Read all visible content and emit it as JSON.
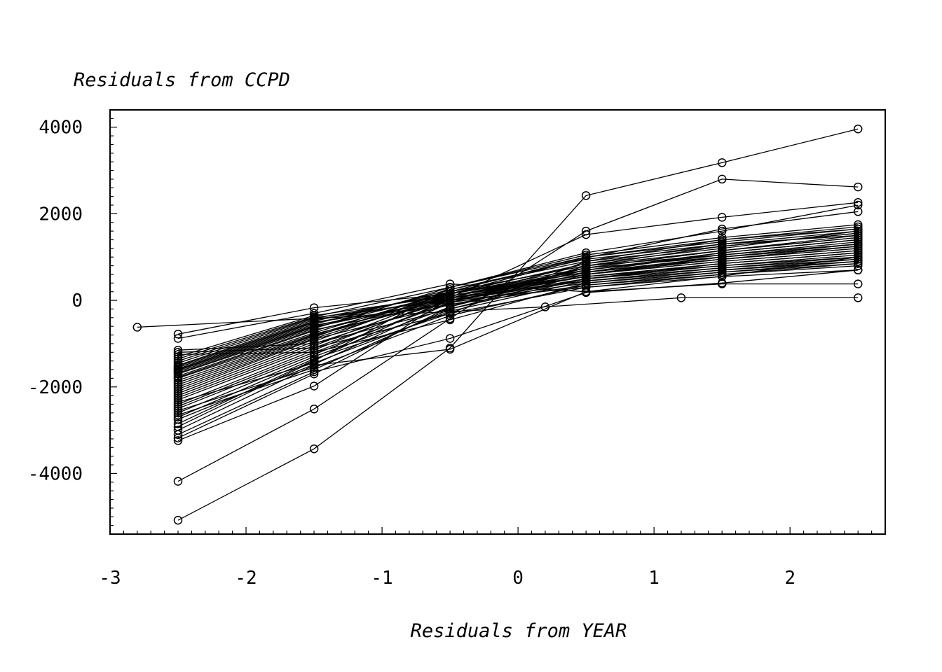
{
  "chart_data": {
    "type": "line",
    "title": "",
    "xlabel": "Residuals from YEAR",
    "ylabel": "Residuals from CCPD",
    "xlim": [
      -3,
      2.7
    ],
    "ylim": [
      -5400,
      4400
    ],
    "x_ticks": [
      -3,
      -2,
      -1,
      0,
      1,
      2
    ],
    "x_tick_labels": [
      "-3",
      "-2",
      "-1",
      "0",
      "1",
      "2"
    ],
    "y_ticks": [
      -4000,
      -2000,
      0,
      2000,
      4000
    ],
    "y_tick_labels": [
      "-4000",
      "-2000",
      "0",
      "2000",
      "4000"
    ],
    "grid": false,
    "marker": "open-circle",
    "line_color": "#000000",
    "series": [
      {
        "x": [
          -2.5,
          -1.5,
          -0.5,
          0.5,
          1.5,
          2.5
        ],
        "y": [
          -5080,
          -3430,
          -1100,
          2420,
          3180,
          3960
        ]
      },
      {
        "x": [
          -2.5,
          -1.5,
          -0.5,
          0.5,
          1.5,
          2.5
        ],
        "y": [
          -4180,
          -2510,
          -420,
          1600,
          2800,
          2620
        ]
      },
      {
        "x": [
          -2.5,
          -1.5,
          -0.5,
          0.5,
          1.5,
          2.5
        ],
        "y": [
          -3240,
          -1980,
          60,
          1520,
          1920,
          2260
        ]
      },
      {
        "x": [
          -2.8,
          0.2,
          1.2,
          2.5
        ],
        "y": [
          -620,
          -150,
          60,
          60
        ]
      },
      {
        "x": [
          -2.5,
          -1.5,
          -0.5,
          0.5,
          1.5,
          2.5
        ],
        "y": [
          -780,
          -170,
          150,
          980,
          1650,
          2050
        ]
      },
      {
        "x": [
          -2.5,
          -1.5,
          -0.5,
          0.5,
          1.5,
          2.5
        ],
        "y": [
          -880,
          -300,
          380,
          200,
          380,
          380
        ]
      },
      {
        "x": [
          -2.5,
          -1.5,
          -0.5,
          0.5,
          1.5,
          2.5
        ],
        "y": [
          -3100,
          -1650,
          -880,
          180,
          400,
          700
        ]
      },
      {
        "x": [
          -2.5,
          -1.5,
          -0.5,
          0.5,
          1.5,
          2.5
        ],
        "y": [
          -3000,
          -1500,
          -1130,
          200,
          560,
          1000
        ]
      },
      {
        "x": [
          -2.5,
          -1.5,
          -0.5,
          0.5,
          1.5,
          2.5
        ],
        "y": [
          -2920,
          -1400,
          300,
          1100,
          1600,
          2200
        ]
      },
      {
        "x": [
          -2.5,
          -1.5,
          -0.5,
          0.5,
          1.5,
          2.5
        ],
        "y": [
          -2700,
          -1350,
          -300,
          900,
          1400,
          1700
        ]
      },
      {
        "x": [
          -2.5,
          -1.5,
          -0.5,
          0.5,
          1.5,
          2.5
        ],
        "y": [
          -2600,
          -1300,
          -150,
          800,
          1250,
          1550
        ]
      },
      {
        "x": [
          -2.5,
          -1.5,
          -0.5,
          0.5,
          1.5,
          2.5
        ],
        "y": [
          -2500,
          -1250,
          0,
          750,
          1150,
          1450
        ]
      },
      {
        "x": [
          -2.5,
          -1.5,
          -0.5,
          0.5,
          1.5,
          2.5
        ],
        "y": [
          -2450,
          -1200,
          -50,
          700,
          1100,
          1400
        ]
      },
      {
        "x": [
          -2.5,
          -1.5,
          -0.5,
          0.5,
          1.5,
          2.5
        ],
        "y": [
          -2400,
          -1150,
          100,
          650,
          1000,
          1300
        ]
      },
      {
        "x": [
          -2.5,
          -1.5,
          -0.5,
          0.5,
          1.5,
          2.5
        ],
        "y": [
          -2300,
          -1100,
          50,
          600,
          950,
          1250
        ]
      },
      {
        "x": [
          -2.5,
          -1.5,
          -0.5,
          0.5,
          1.5,
          2.5
        ],
        "y": [
          -2250,
          -1050,
          150,
          850,
          1200,
          1600
        ]
      },
      {
        "x": [
          -2.5,
          -1.5,
          -0.5,
          0.5,
          1.5,
          2.5
        ],
        "y": [
          -2200,
          -1000,
          0,
          550,
          850,
          1100
        ]
      },
      {
        "x": [
          -2.5,
          -1.5,
          -0.5,
          0.5,
          1.5,
          2.5
        ],
        "y": [
          -2150,
          -950,
          200,
          1000,
          1350,
          1650
        ]
      },
      {
        "x": [
          -2.5,
          -1.5,
          -0.5,
          0.5,
          1.5,
          2.5
        ],
        "y": [
          -2100,
          -900,
          -100,
          500,
          800,
          1050
        ]
      },
      {
        "x": [
          -2.5,
          -1.5,
          -0.5,
          0.5,
          1.5,
          2.5
        ],
        "y": [
          -2050,
          -880,
          100,
          700,
          1050,
          1350
        ]
      },
      {
        "x": [
          -2.5,
          -1.5,
          -0.5,
          0.5,
          1.5,
          2.5
        ],
        "y": [
          -2000,
          -850,
          250,
          950,
          1300,
          1500
        ]
      },
      {
        "x": [
          -2.5,
          -1.5,
          -0.5,
          0.5,
          1.5,
          2.5
        ],
        "y": [
          -1950,
          -820,
          50,
          600,
          900,
          1150
        ]
      },
      {
        "x": [
          -2.5,
          -1.5,
          -0.5,
          0.5,
          1.5,
          2.5
        ],
        "y": [
          -1900,
          -800,
          150,
          750,
          1000,
          1250
        ]
      },
      {
        "x": [
          -2.5,
          -1.5,
          -0.5,
          0.5,
          1.5,
          2.5
        ],
        "y": [
          -1850,
          -780,
          0,
          450,
          700,
          900
        ]
      },
      {
        "x": [
          -2.5,
          -1.5,
          -0.5,
          0.5,
          1.5,
          2.5
        ],
        "y": [
          -1800,
          -750,
          200,
          800,
          1150,
          1450
        ]
      },
      {
        "x": [
          -2.5,
          -1.5,
          -0.5,
          0.5,
          1.5,
          2.5
        ],
        "y": [
          -1780,
          -700,
          100,
          650,
          950,
          1200
        ]
      },
      {
        "x": [
          -2.5,
          -1.5,
          -0.5,
          0.5,
          1.5,
          2.5
        ],
        "y": [
          -1750,
          -680,
          -50,
          400,
          650,
          850
        ]
      },
      {
        "x": [
          -2.5,
          -1.5,
          -0.5,
          0.5,
          1.5,
          2.5
        ],
        "y": [
          -1700,
          -650,
          300,
          1050,
          1450,
          1750
        ]
      },
      {
        "x": [
          -2.5,
          -1.5,
          -0.5,
          0.5,
          1.5,
          2.5
        ],
        "y": [
          -1680,
          -620,
          50,
          550,
          800,
          1000
        ]
      },
      {
        "x": [
          -2.5,
          -1.5,
          -0.5,
          0.5,
          1.5,
          2.5
        ],
        "y": [
          -1650,
          -600,
          150,
          700,
          1100,
          1400
        ]
      },
      {
        "x": [
          -2.5,
          -1.5,
          -0.5,
          0.5,
          1.5,
          2.5
        ],
        "y": [
          -1620,
          -580,
          0,
          500,
          750,
          950
        ]
      },
      {
        "x": [
          -2.5,
          -1.5,
          -0.5,
          0.5,
          1.5,
          2.5
        ],
        "y": [
          -1600,
          -550,
          250,
          900,
          1250,
          1550
        ]
      },
      {
        "x": [
          -2.5,
          -1.5,
          -0.5,
          0.5,
          1.5,
          2.5
        ],
        "y": [
          -1580,
          -520,
          100,
          600,
          900,
          1150
        ]
      },
      {
        "x": [
          -2.5,
          -1.5,
          -0.5,
          0.5,
          1.5,
          2.5
        ],
        "y": [
          -1550,
          -500,
          -100,
          350,
          600,
          800
        ]
      },
      {
        "x": [
          -2.5,
          -1.5,
          -0.5,
          0.5,
          1.5,
          2.5
        ],
        "y": [
          -1520,
          -480,
          200,
          800,
          1050,
          1300
        ]
      },
      {
        "x": [
          -2.5,
          -1.5,
          -0.5,
          0.5,
          1.5,
          2.5
        ],
        "y": [
          -1500,
          -450,
          50,
          450,
          700,
          900
        ]
      },
      {
        "x": [
          -2.5,
          -1.5,
          -0.5,
          0.5,
          1.5,
          2.5
        ],
        "y": [
          -1450,
          -420,
          150,
          650,
          950,
          1200
        ]
      },
      {
        "x": [
          -2.5,
          -1.5,
          -0.5,
          0.5,
          1.5,
          2.5
        ],
        "y": [
          -1400,
          -400,
          0,
          300,
          550,
          700
        ]
      },
      {
        "x": [
          -2.5,
          -1.5,
          -0.5,
          0.5,
          1.5,
          2.5
        ],
        "y": [
          -1350,
          -380,
          300,
          1000,
          1400,
          1650
        ]
      },
      {
        "x": [
          -2.5,
          -1.5,
          -0.5,
          0.5,
          1.5,
          2.5
        ],
        "y": [
          -1300,
          -350,
          100,
          550,
          850,
          1100
        ]
      },
      {
        "x": [
          -2.5,
          -1.5,
          -0.5,
          0.5,
          1.5,
          2.5
        ],
        "y": [
          -1250,
          -1200,
          -450,
          400,
          700,
          950
        ]
      },
      {
        "x": [
          -2.5,
          -1.5,
          -0.5,
          0.5,
          1.5,
          2.5
        ],
        "y": [
          -1200,
          -1100,
          -300,
          300,
          600,
          850
        ]
      },
      {
        "x": [
          -2.5,
          -1.5,
          -0.5,
          0.5,
          1.5,
          2.5
        ],
        "y": [
          -1150,
          -1000,
          -200,
          500,
          850,
          1100
        ]
      },
      {
        "x": [
          -2.5,
          -1.5,
          -0.5,
          0.5,
          1.5,
          2.5
        ],
        "y": [
          -2350,
          -1450,
          -250,
          450,
          750,
          1000
        ]
      },
      {
        "x": [
          -2.5,
          -1.5,
          -0.5,
          0.5,
          1.5,
          2.5
        ],
        "y": [
          -2550,
          -1550,
          -350,
          350,
          650,
          900
        ]
      },
      {
        "x": [
          -2.5,
          -1.5,
          -0.5,
          0.5,
          1.5,
          2.5
        ],
        "y": [
          -2650,
          -1600,
          -200,
          600,
          1000,
          1300
        ]
      },
      {
        "x": [
          -2.5,
          -1.5,
          -0.5,
          0.5,
          1.5,
          2.5
        ],
        "y": [
          -2750,
          -1480,
          -50,
          750,
          1150,
          1500
        ]
      },
      {
        "x": [
          -2.5,
          -1.5,
          -0.5,
          0.5,
          1.5,
          2.5
        ],
        "y": [
          -2850,
          -1380,
          50,
          850,
          1300,
          1600
        ]
      },
      {
        "x": [
          -2.5,
          -1.5,
          -0.5,
          0.5,
          1.5,
          2.5
        ],
        "y": [
          -3180,
          -1700,
          -150,
          650,
          1100,
          1400
        ]
      }
    ]
  }
}
